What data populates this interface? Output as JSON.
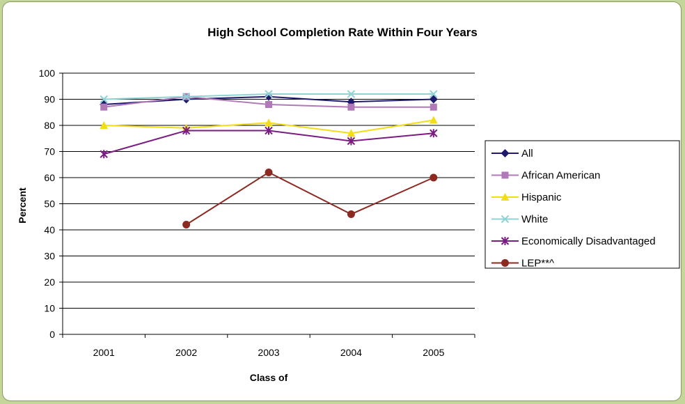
{
  "chart_data": {
    "type": "line",
    "title": "High School Completion Rate Within Four Years",
    "xlabel": "Class of",
    "ylabel": "Percent",
    "categories": [
      "2001",
      "2002",
      "2003",
      "2004",
      "2005"
    ],
    "ylim": [
      0,
      100
    ],
    "yticks": [
      0,
      10,
      20,
      30,
      40,
      50,
      60,
      70,
      80,
      90,
      100
    ],
    "grid": true,
    "legend_position": "right",
    "series": [
      {
        "name": "All",
        "color": "#1f1a6e",
        "marker": "diamond",
        "values": [
          88,
          90,
          91,
          89,
          90
        ]
      },
      {
        "name": "African American",
        "color": "#b07ab8",
        "marker": "square",
        "values": [
          87,
          91,
          88,
          87,
          87
        ]
      },
      {
        "name": "Hispanic",
        "color": "#f2dd16",
        "marker": "triangle",
        "values": [
          80,
          79,
          81,
          77,
          82
        ]
      },
      {
        "name": "White",
        "color": "#8fd3d5",
        "marker": "x",
        "values": [
          90,
          91,
          92,
          92,
          92
        ]
      },
      {
        "name": "Economically Disadvantaged",
        "color": "#7a1c82",
        "marker": "star",
        "values": [
          69,
          78,
          78,
          74,
          77
        ]
      },
      {
        "name": "LEP**^",
        "color": "#8c2a22",
        "marker": "circle",
        "values": [
          null,
          42,
          62,
          46,
          60
        ]
      }
    ]
  }
}
